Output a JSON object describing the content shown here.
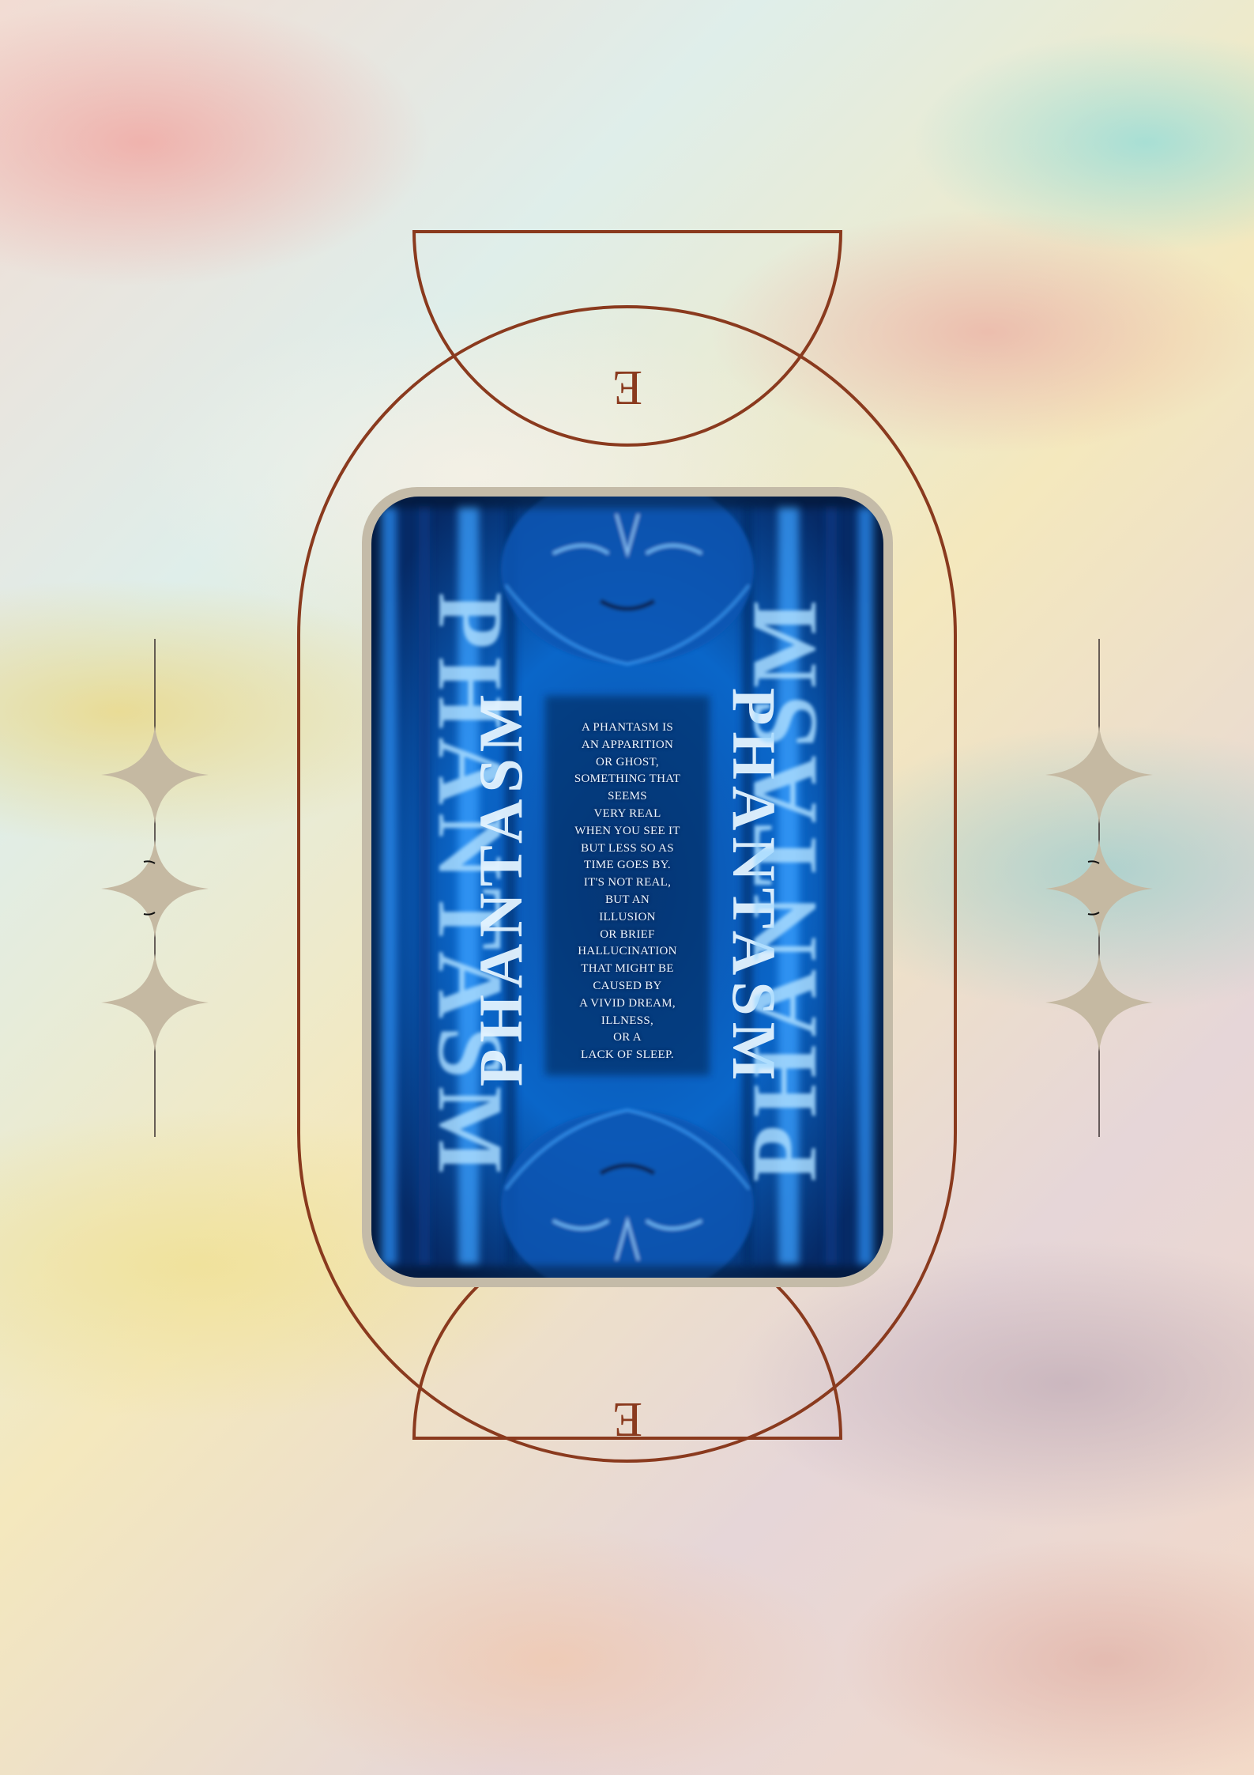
{
  "poster": {
    "top_letter": "E",
    "bottom_letter": "E",
    "title_word": "PHANTASM",
    "blurb_lines": [
      "A PHANTASM IS",
      "AN APPARITION",
      "OR GHOST,",
      "SOMETHING THAT",
      "SEEMS",
      "VERY REAL",
      "WHEN YOU SEE IT",
      "BUT LESS SO AS",
      "TIME GOES BY.",
      "IT'S NOT REAL,",
      "BUT AN",
      "ILLUSION",
      "OR BRIEF",
      "HALLUCINATION",
      "THAT MIGHT BE",
      "CAUSED BY",
      "A VIVID DREAM,",
      "ILLNESS,",
      "OR A",
      "LACK OF SLEEP."
    ]
  },
  "colors": {
    "frame": "#8a3a1e",
    "sparkle": "#c5b9a2",
    "card_border": "#c4bba8",
    "card_blue": "#0a64c8"
  },
  "icons": [
    "four-point-star-icon"
  ]
}
